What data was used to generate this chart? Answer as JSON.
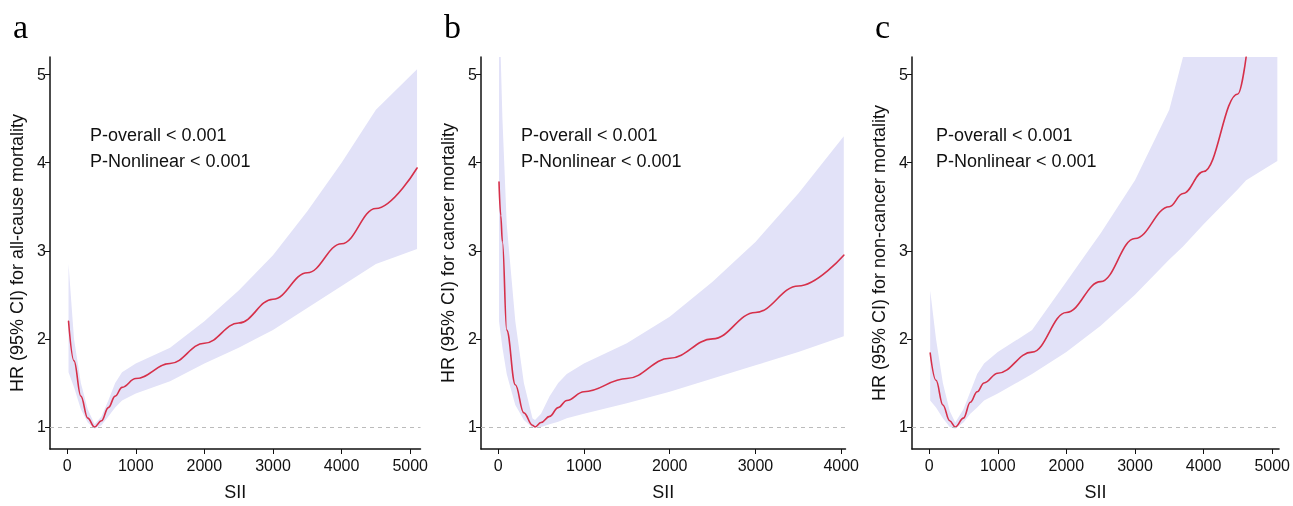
{
  "chart_data": [
    {
      "type": "line",
      "title": "a",
      "xlabel": "SII",
      "ylabel": "HR (95% CI) for all-cause mortality",
      "xlim": [
        -250,
        5150
      ],
      "xticks": [
        0,
        1000,
        2000,
        3000,
        4000,
        5000
      ],
      "ylim": [
        0.75,
        5.2
      ],
      "yticks": [
        1,
        2,
        3,
        4,
        5
      ],
      "grid": false,
      "marker": "none",
      "line_style": "solid",
      "annotations": [
        "P-overall < 0.001",
        "P-Nonlinear < 0.001"
      ],
      "ref_lines": [
        {
          "axis": "y",
          "value": 1,
          "label": null,
          "color": "#bbbbbb",
          "line_style": "dashed"
        }
      ],
      "series": [
        {
          "color": "#d6304a",
          "x": [
            20,
            100,
            200,
            300,
            400,
            500,
            600,
            700,
            800,
            1000,
            1500,
            2000,
            2500,
            3000,
            3500,
            4000,
            4500,
            5100
          ],
          "values": [
            2.2,
            1.75,
            1.35,
            1.1,
            1.0,
            1.07,
            1.22,
            1.35,
            1.45,
            1.55,
            1.72,
            1.95,
            2.18,
            2.45,
            2.75,
            3.08,
            3.48,
            3.94
          ],
          "lower": [
            1.62,
            1.45,
            1.2,
            1.05,
            0.98,
            1.02,
            1.12,
            1.22,
            1.3,
            1.38,
            1.52,
            1.72,
            1.9,
            2.1,
            2.35,
            2.6,
            2.85,
            3.02
          ],
          "upper": [
            2.85,
            2.0,
            1.5,
            1.2,
            1.03,
            1.12,
            1.3,
            1.5,
            1.62,
            1.72,
            1.9,
            2.2,
            2.55,
            2.95,
            3.45,
            4.0,
            4.6,
            5.06
          ]
        }
      ]
    },
    {
      "type": "line",
      "title": "b",
      "xlabel": "SII",
      "ylabel": "HR (95% CI) for cancer mortality",
      "xlim": [
        -200,
        4050
      ],
      "xticks": [
        0,
        1000,
        2000,
        3000,
        4000
      ],
      "ylim": [
        0.75,
        5.2
      ],
      "yticks": [
        1,
        2,
        3,
        4,
        5
      ],
      "grid": false,
      "marker": "none",
      "line_style": "solid",
      "annotations": [
        "P-overall < 0.001",
        "P-Nonlinear < 0.001"
      ],
      "ref_lines": [
        {
          "axis": "y",
          "value": 1,
          "label": null,
          "color": "#bbbbbb",
          "line_style": "dashed"
        }
      ],
      "series": [
        {
          "color": "#d6304a",
          "x": [
            10,
            30,
            50,
            100,
            200,
            300,
            400,
            430,
            500,
            600,
            700,
            800,
            1000,
            1500,
            2000,
            2500,
            3000,
            3500,
            4030
          ],
          "values": [
            3.78,
            3.4,
            3.1,
            2.1,
            1.48,
            1.16,
            1.02,
            1.0,
            1.05,
            1.12,
            1.22,
            1.3,
            1.4,
            1.55,
            1.78,
            2.0,
            2.3,
            2.6,
            2.95
          ],
          "lower": [
            2.2,
            2.05,
            1.9,
            1.6,
            1.25,
            1.08,
            0.99,
            0.99,
            1.0,
            1.03,
            1.06,
            1.1,
            1.15,
            1.27,
            1.4,
            1.55,
            1.7,
            1.85,
            2.03
          ],
          "upper": [
            5.2,
            5.2,
            4.5,
            3.3,
            2.2,
            1.5,
            1.1,
            1.08,
            1.15,
            1.35,
            1.5,
            1.6,
            1.72,
            1.95,
            2.25,
            2.65,
            3.1,
            3.65,
            4.3
          ]
        }
      ]
    },
    {
      "type": "line",
      "title": "c",
      "xlabel": "SII",
      "ylabel": "HR (95% CI) for non-cancer mortality",
      "xlim": [
        -250,
        5100
      ],
      "xticks": [
        0,
        1000,
        2000,
        3000,
        4000,
        5000
      ],
      "ylim": [
        0.75,
        5.2
      ],
      "yticks": [
        1,
        2,
        3,
        4,
        5
      ],
      "grid": false,
      "marker": "none",
      "line_style": "solid",
      "annotations": [
        "P-overall < 0.001",
        "P-Nonlinear < 0.001"
      ],
      "ref_lines": [
        {
          "axis": "y",
          "value": 1,
          "label": null,
          "color": "#bbbbbb",
          "line_style": "dashed"
        }
      ],
      "series": [
        {
          "color": "#d6304a",
          "x": [
            15,
            100,
            200,
            300,
            380,
            500,
            600,
            700,
            800,
            1000,
            1500,
            2000,
            2500,
            3000,
            3500,
            3700,
            4000,
            4500,
            4620,
            5075
          ],
          "values": [
            1.84,
            1.53,
            1.25,
            1.07,
            1.0,
            1.1,
            1.28,
            1.4,
            1.5,
            1.61,
            1.85,
            2.3,
            2.65,
            3.14,
            3.5,
            3.65,
            3.9,
            4.78,
            5.2,
            null
          ],
          "lower": [
            1.3,
            1.22,
            1.1,
            1.0,
            0.98,
            1.05,
            1.15,
            1.22,
            1.3,
            1.38,
            1.6,
            1.85,
            2.15,
            2.5,
            2.9,
            3.05,
            3.3,
            3.7,
            3.8,
            4.02
          ],
          "upper": [
            2.55,
            2.0,
            1.5,
            1.18,
            1.05,
            1.2,
            1.4,
            1.6,
            1.72,
            1.85,
            2.1,
            2.65,
            3.2,
            3.8,
            4.6,
            5.2,
            5.2,
            5.2,
            5.2,
            5.2
          ]
        }
      ]
    }
  ]
}
